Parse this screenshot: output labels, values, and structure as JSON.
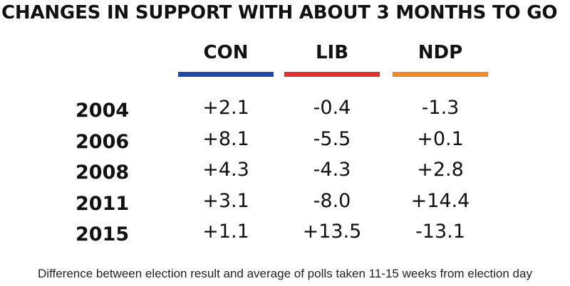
{
  "chart_data": {
    "type": "table",
    "title": "CHANGES IN SUPPORT WITH ABOUT 3 MONTHS TO GO",
    "columns": [
      {
        "label": "CON",
        "color": "#1f4aa8"
      },
      {
        "label": "LIB",
        "color": "#e0312f"
      },
      {
        "label": "NDP",
        "color": "#ef8a2b"
      }
    ],
    "rows": [
      {
        "year": "2004",
        "values": [
          "+2.1",
          "-0.4",
          "-1.3"
        ]
      },
      {
        "year": "2006",
        "values": [
          "+8.1",
          "-5.5",
          "+0.1"
        ]
      },
      {
        "year": "2008",
        "values": [
          "+4.3",
          "-4.3",
          "+2.8"
        ]
      },
      {
        "year": "2011",
        "values": [
          "+3.1",
          "-8.0",
          "+14.4"
        ]
      },
      {
        "year": "2015",
        "values": [
          "+1.1",
          "+13.5",
          "-13.1"
        ]
      }
    ],
    "footnote": "Difference between election result and average of polls taken 11-15 weeks from election day"
  }
}
